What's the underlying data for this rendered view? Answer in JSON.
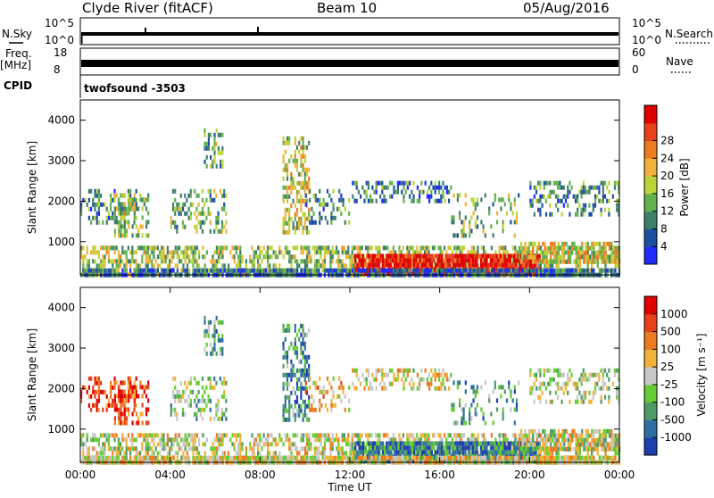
{
  "header": {
    "station": "Clyde River (fitACF)",
    "beam": "Beam 10",
    "date": "05/Aug/2016"
  },
  "meta_panels": {
    "nsky_label": "N.Sky",
    "nsky_ticks": [
      "10^5",
      "10^0"
    ],
    "nsearch_label": "N.Search",
    "nsearch_ticks": [
      "10^5",
      "10^0"
    ],
    "freq_label": "Freq.",
    "freq_unit": "[MHz]",
    "freq_ticks": [
      "18",
      "8"
    ],
    "nave_label": "Nave",
    "nave_ticks": [
      "60",
      "0"
    ],
    "cpid_label": "CPID",
    "cpid_value": "twofsound -3503"
  },
  "chart_data": [
    {
      "type": "heatmap",
      "name": "power",
      "ylabel": "Slant Range [km]",
      "ylim": [
        180,
        4500
      ],
      "yticks": [
        1000,
        2000,
        3000,
        4000
      ],
      "xlim_hours": [
        0,
        24
      ],
      "colorbar": {
        "label": "Power [dB]",
        "ticks": [
          "4",
          "8",
          "12",
          "16",
          "20",
          "24",
          "28"
        ],
        "colors": [
          "#1f2bff",
          "#1d4fa0",
          "#3f7f6a",
          "#63b04d",
          "#bcd33a",
          "#f2b13a",
          "#ec7b22",
          "#e7401b",
          "#e00000"
        ]
      }
    },
    {
      "type": "heatmap",
      "name": "velocity",
      "ylabel": "Slant Range [km]",
      "xlabel": "Time UT",
      "ylim": [
        180,
        4500
      ],
      "yticks": [
        1000,
        2000,
        3000,
        4000
      ],
      "xlim_hours": [
        0,
        24
      ],
      "xticks": [
        "00:00",
        "04:00",
        "08:00",
        "12:00",
        "16:00",
        "20:00",
        "00:00"
      ],
      "colorbar": {
        "label": "Velocity [m s⁻¹]",
        "ticks": [
          "1000",
          "500",
          "100",
          "25",
          "-25",
          "-100",
          "-500",
          "-1000"
        ],
        "colors": [
          "#1e3fb0",
          "#2c6fa2",
          "#4e9a66",
          "#66cc33",
          "#c8c8c8",
          "#f2b13a",
          "#ec7b22",
          "#e7401b",
          "#e00000"
        ]
      }
    }
  ]
}
